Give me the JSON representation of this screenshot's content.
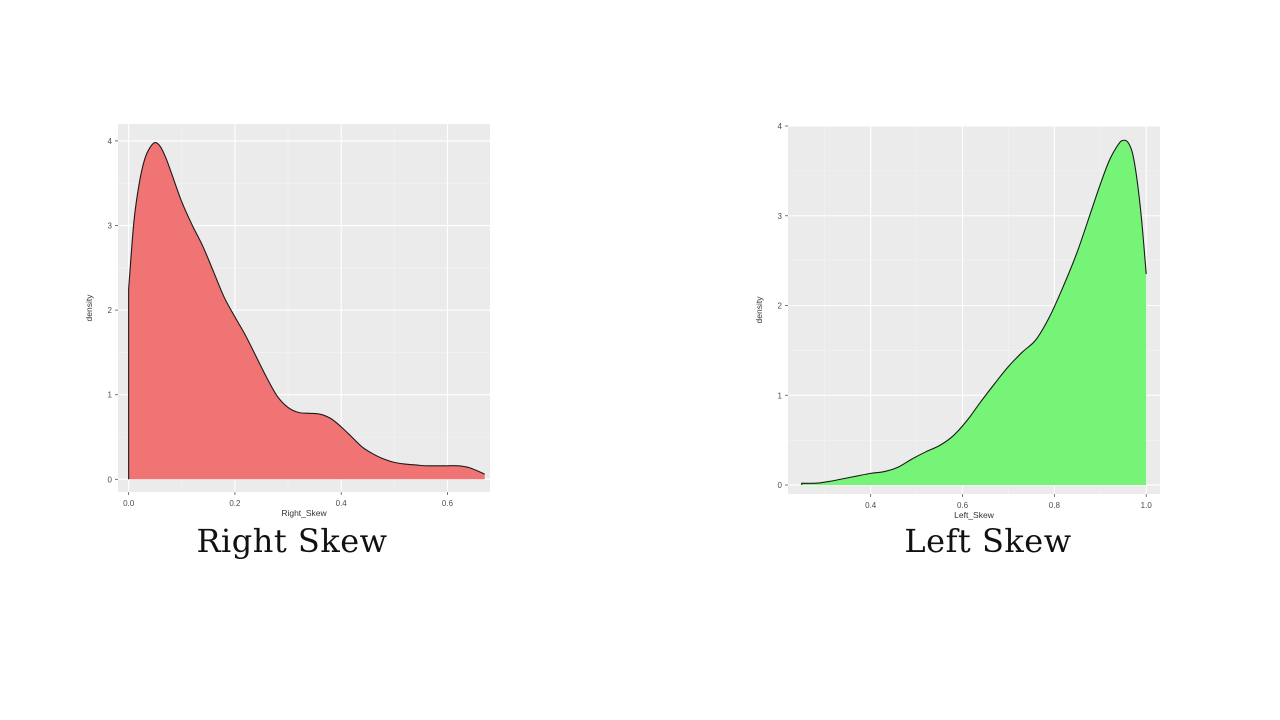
{
  "chart_data": [
    {
      "type": "area",
      "xlabel": "Right_Skew",
      "ylabel": "density",
      "xlim": [
        -0.02,
        0.68
      ],
      "ylim": [
        -0.15,
        4.2
      ],
      "xticks": [
        0.0,
        0.2,
        0.4,
        0.6
      ],
      "xtick_labels": [
        "0.0",
        "0.2",
        "0.4",
        "0.6"
      ],
      "yticks": [
        0,
        1,
        2,
        3,
        4
      ],
      "ytick_labels": [
        "0",
        "1",
        "2",
        "3",
        "4"
      ],
      "grid": true,
      "fill_color": "#f07474",
      "caption": "Right Skew",
      "x": [
        0.0,
        0.01,
        0.02,
        0.03,
        0.04,
        0.05,
        0.06,
        0.07,
        0.08,
        0.1,
        0.12,
        0.14,
        0.16,
        0.18,
        0.2,
        0.22,
        0.24,
        0.26,
        0.28,
        0.3,
        0.32,
        0.34,
        0.36,
        0.38,
        0.4,
        0.42,
        0.44,
        0.46,
        0.48,
        0.5,
        0.52,
        0.54,
        0.56,
        0.58,
        0.6,
        0.62,
        0.64,
        0.66,
        0.67
      ],
      "y": [
        2.25,
        3.05,
        3.5,
        3.78,
        3.92,
        3.98,
        3.93,
        3.8,
        3.63,
        3.28,
        3.0,
        2.75,
        2.45,
        2.15,
        1.92,
        1.7,
        1.45,
        1.2,
        0.98,
        0.85,
        0.79,
        0.78,
        0.77,
        0.72,
        0.62,
        0.5,
        0.38,
        0.3,
        0.24,
        0.2,
        0.18,
        0.17,
        0.16,
        0.16,
        0.16,
        0.16,
        0.14,
        0.09,
        0.06
      ]
    },
    {
      "type": "area",
      "xlabel": "Left_Skew",
      "ylabel": "density",
      "xlim": [
        0.22,
        1.03
      ],
      "ylim": [
        -0.1,
        4.0
      ],
      "xticks": [
        0.4,
        0.6,
        0.8,
        1.0
      ],
      "xtick_labels": [
        "0.4",
        "0.6",
        "0.8",
        "1.0"
      ],
      "yticks": [
        0,
        1,
        2,
        3,
        4
      ],
      "ytick_labels": [
        "0",
        "1",
        "2",
        "3",
        "4"
      ],
      "grid": true,
      "fill_color": "#75f477",
      "caption": "Left Skew",
      "x": [
        0.25,
        0.28,
        0.31,
        0.34,
        0.37,
        0.4,
        0.43,
        0.46,
        0.49,
        0.52,
        0.55,
        0.58,
        0.61,
        0.64,
        0.67,
        0.7,
        0.73,
        0.76,
        0.79,
        0.82,
        0.85,
        0.88,
        0.9,
        0.92,
        0.94,
        0.95,
        0.96,
        0.97,
        0.98,
        0.99,
        1.0
      ],
      "y": [
        0.02,
        0.02,
        0.04,
        0.07,
        0.1,
        0.13,
        0.15,
        0.2,
        0.29,
        0.37,
        0.44,
        0.55,
        0.72,
        0.93,
        1.13,
        1.32,
        1.48,
        1.62,
        1.88,
        2.22,
        2.6,
        3.05,
        3.35,
        3.62,
        3.8,
        3.84,
        3.82,
        3.7,
        3.4,
        2.95,
        2.35
      ]
    }
  ]
}
